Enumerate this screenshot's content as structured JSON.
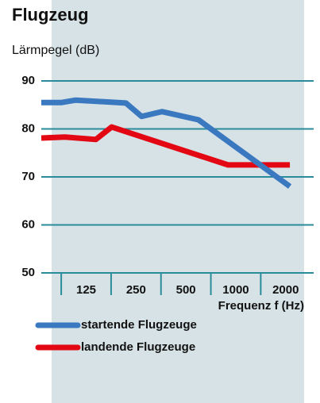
{
  "chart_data": {
    "type": "line",
    "title": "Flugzeug",
    "y_label": "Lärmpegel (dB)",
    "x_label": "Frequenz f (Hz)",
    "x_scale": "log",
    "xlim": [
      67,
      2950
    ],
    "xticks": [
      125,
      250,
      500,
      1000,
      2000
    ],
    "ylim": [
      50,
      90
    ],
    "yticks": [
      50,
      60,
      70,
      80,
      90
    ],
    "grid": true,
    "series": [
      {
        "name": "startende Flugzeuge",
        "color": "#3a78c0",
        "x": [
          67,
          89,
          108,
          217,
          270,
          358,
          595,
          2120
        ],
        "values": [
          85.5,
          85.5,
          86,
          85.4,
          82.6,
          83.6,
          81.9,
          68
        ]
      },
      {
        "name": "landende Flugzeuge",
        "color": "#e30613",
        "x": [
          67,
          93,
          143,
          178,
          897,
          2120
        ],
        "values": [
          78.1,
          78.3,
          77.8,
          80.4,
          72.5,
          72.5
        ]
      }
    ]
  }
}
